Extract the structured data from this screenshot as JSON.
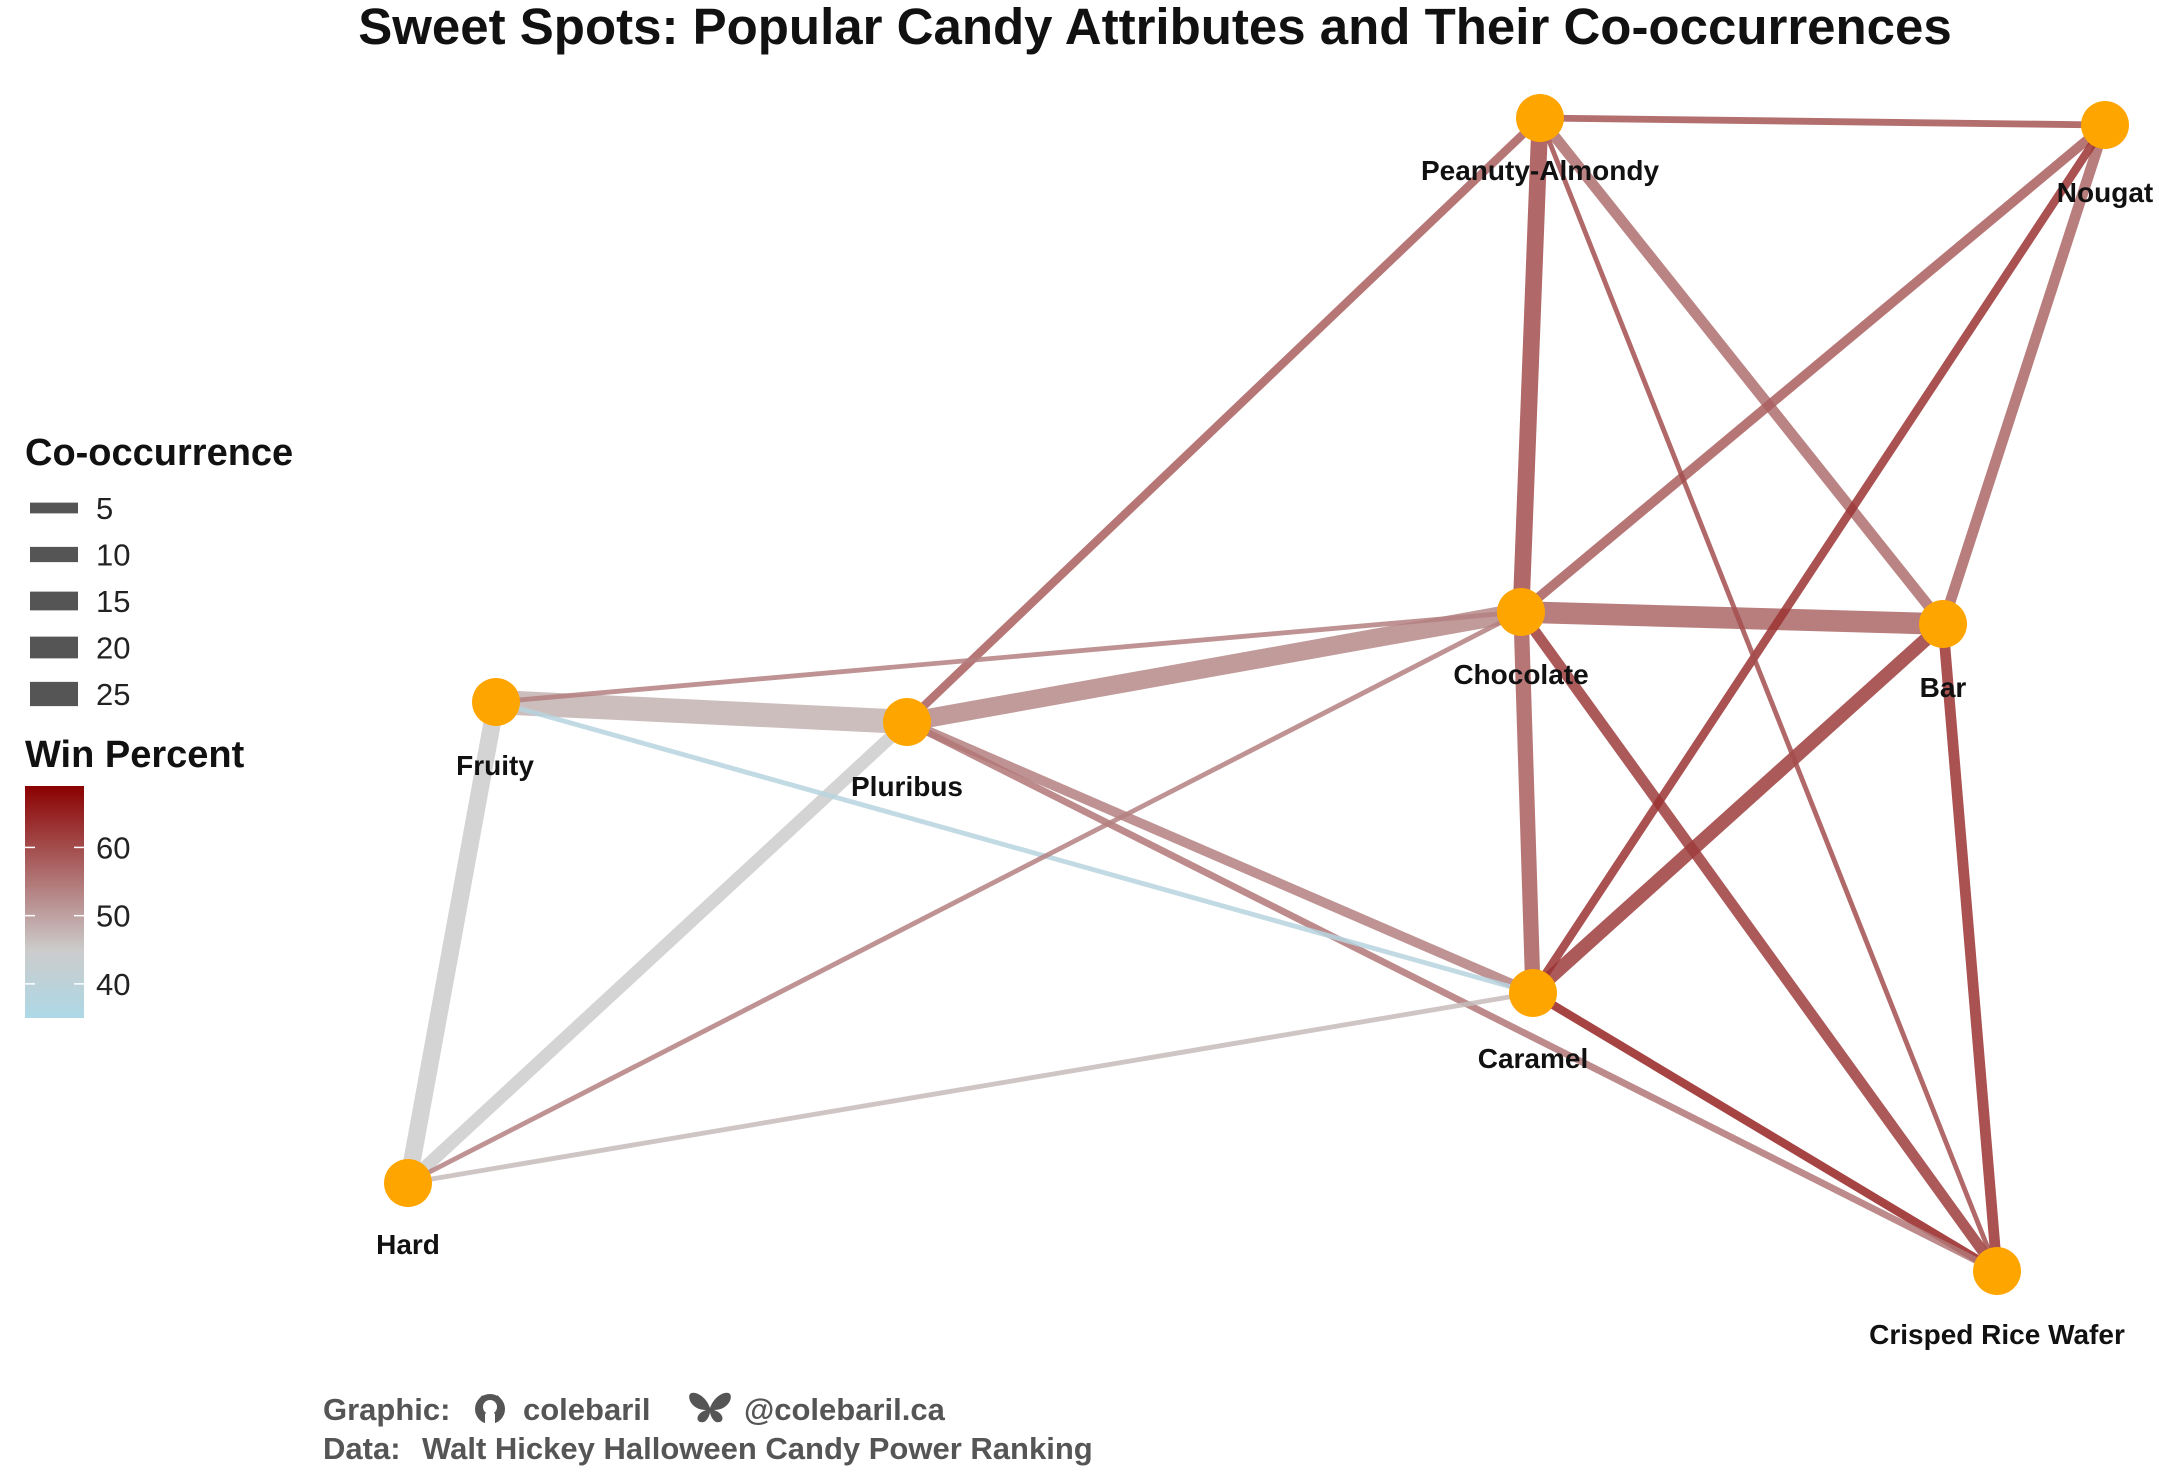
{
  "title": "Sweet Spots: Popular Candy Attributes and Their Co-occurrences",
  "nodes": [
    {
      "id": "peanuty-almondy",
      "label": "Peanuty-Almondy"
    },
    {
      "id": "nougat",
      "label": "Nougat"
    },
    {
      "id": "chocolate",
      "label": "Chocolate"
    },
    {
      "id": "bar",
      "label": "Bar"
    },
    {
      "id": "fruity",
      "label": "Fruity"
    },
    {
      "id": "pluribus",
      "label": "Pluribus"
    },
    {
      "id": "caramel",
      "label": "Caramel"
    },
    {
      "id": "hard",
      "label": "Hard"
    },
    {
      "id": "crisped-rice-wafer",
      "label": "Crisped Rice Wafer"
    }
  ],
  "node_color": "#FFA500",
  "edges": [
    {
      "source": "chocolate",
      "target": "bar",
      "cooccurrence": 20,
      "win_percent": 57
    },
    {
      "source": "chocolate",
      "target": "pluribus",
      "cooccurrence": 15,
      "win_percent": 53
    },
    {
      "source": "fruity",
      "target": "pluribus",
      "cooccurrence": 25,
      "win_percent": 48
    },
    {
      "source": "fruity",
      "target": "hard",
      "cooccurrence": 13,
      "win_percent": 45
    },
    {
      "source": "hard",
      "target": "pluribus",
      "cooccurrence": 7,
      "win_percent": 45
    },
    {
      "source": "chocolate",
      "target": "peanuty-almondy",
      "cooccurrence": 12,
      "win_percent": 60
    },
    {
      "source": "chocolate",
      "target": "caramel",
      "cooccurrence": 10,
      "win_percent": 58
    },
    {
      "source": "caramel",
      "target": "bar",
      "cooccurrence": 8,
      "win_percent": 62
    },
    {
      "source": "peanuty-almondy",
      "target": "bar",
      "cooccurrence": 5,
      "win_percent": 56
    },
    {
      "source": "chocolate",
      "target": "nougat",
      "cooccurrence": 4,
      "win_percent": 58
    },
    {
      "source": "nougat",
      "target": "bar",
      "cooccurrence": 5,
      "win_percent": 57
    },
    {
      "source": "chocolate",
      "target": "crisped-rice-wafer",
      "cooccurrence": 5,
      "win_percent": 62
    },
    {
      "source": "bar",
      "target": "crisped-rice-wafer",
      "cooccurrence": 5,
      "win_percent": 63
    },
    {
      "source": "caramel",
      "target": "nougat",
      "cooccurrence": 3,
      "win_percent": 63
    },
    {
      "source": "peanuty-almondy",
      "target": "nougat",
      "cooccurrence": 2,
      "win_percent": 59
    },
    {
      "source": "pluribus",
      "target": "peanuty-almondy",
      "cooccurrence": 3,
      "win_percent": 58
    },
    {
      "source": "pluribus",
      "target": "caramel",
      "cooccurrence": 4,
      "win_percent": 54
    },
    {
      "source": "caramel",
      "target": "crisped-rice-wafer",
      "cooccurrence": 3,
      "win_percent": 65
    },
    {
      "source": "pluribus",
      "target": "crisped-rice-wafer",
      "cooccurrence": 2,
      "win_percent": 55
    },
    {
      "source": "peanuty-almondy",
      "target": "crisped-rice-wafer",
      "cooccurrence": 1,
      "win_percent": 60
    },
    {
      "source": "fruity",
      "target": "chocolate",
      "cooccurrence": 1,
      "win_percent": 54
    },
    {
      "source": "fruity",
      "target": "caramel",
      "cooccurrence": 1,
      "win_percent": 38
    },
    {
      "source": "hard",
      "target": "chocolate",
      "cooccurrence": 1,
      "win_percent": 54
    },
    {
      "source": "hard",
      "target": "caramel",
      "cooccurrence": 1,
      "win_percent": 47
    }
  ],
  "legend": {
    "size_title": "Co-occurrence",
    "size_items": [
      {
        "label": "5",
        "value": 5
      },
      {
        "label": "10",
        "value": 10
      },
      {
        "label": "15",
        "value": 15
      },
      {
        "label": "20",
        "value": 20
      },
      {
        "label": "25",
        "value": 25
      }
    ],
    "color_title": "Win Percent",
    "color_ticks": [
      {
        "label": "60",
        "value": 60
      },
      {
        "label": "50",
        "value": 50
      },
      {
        "label": "40",
        "value": 40
      }
    ],
    "color_range": [
      35,
      69
    ],
    "color_low": "#ADD8E6",
    "color_mid": "#CCCCCC",
    "color_high": "#8B0000",
    "color_midpoint": 45
  },
  "caption": {
    "graphic_label": "Graphic:",
    "github_icon": "github-icon",
    "github_handle": "colebaril",
    "bluesky_icon": "butterfly-icon",
    "bluesky_handle": "@colebaril.ca",
    "data_label": "Data:",
    "data_source": "Walt Hickey Halloween Candy Power Ranking"
  }
}
